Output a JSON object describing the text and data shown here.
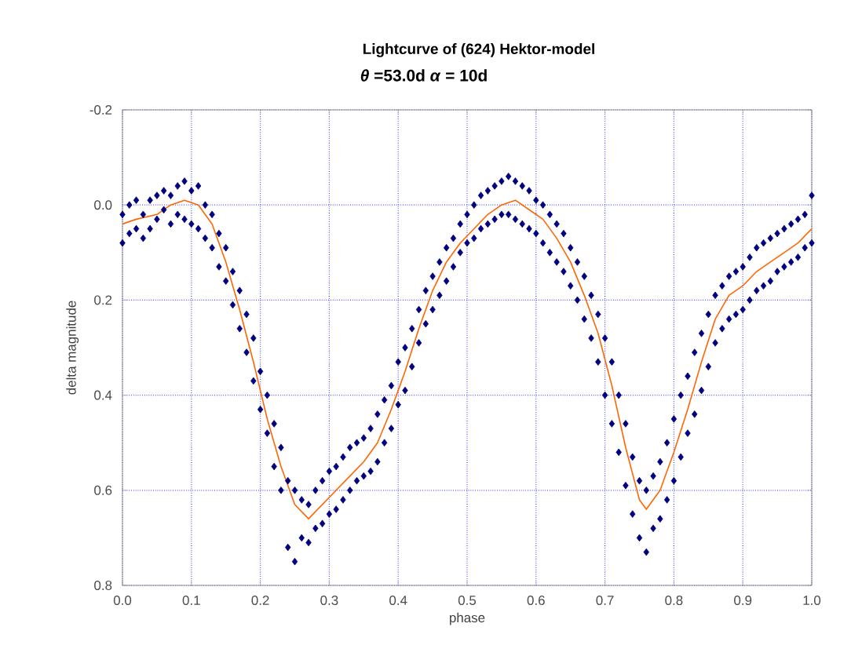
{
  "chart_data": {
    "type": "scatter",
    "title": "Lightcurve of (624) Hektor-model",
    "subtitle": "*θ* =53.0d    *α* = 10d",
    "xlabel": "phase",
    "ylabel": "delta magnitude",
    "xlim": [
      0,
      1
    ],
    "ylim": [
      0.8,
      -0.2
    ],
    "xticks": [
      {
        "value": 0,
        "label": "0.0"
      },
      0.1,
      0.2,
      0.3,
      0.4,
      0.5,
      0.6,
      0.7,
      0.8,
      0.9,
      {
        "value": 1,
        "label": "1.0"
      }
    ],
    "yticks": [
      -0.2,
      {
        "value": 0,
        "label": "0.0"
      },
      0.2,
      0.4,
      0.6,
      0.8
    ],
    "grid": true,
    "series": [
      {
        "marker": "diamond",
        "color": "#000080",
        "x": [
          0.0,
          0.0,
          0.01,
          0.01,
          0.02,
          0.02,
          0.03,
          0.03,
          0.04,
          0.04,
          0.05,
          0.05,
          0.06,
          0.06,
          0.07,
          0.07,
          0.08,
          0.08,
          0.09,
          0.09,
          0.1,
          0.1,
          0.11,
          0.11,
          0.12,
          0.12,
          0.13,
          0.13,
          0.14,
          0.14,
          0.15,
          0.15,
          0.16,
          0.16,
          0.17,
          0.17,
          0.18,
          0.18,
          0.19,
          0.19,
          0.2,
          0.2,
          0.21,
          0.21,
          0.22,
          0.22,
          0.23,
          0.23,
          0.24,
          0.24,
          0.25,
          0.25,
          0.26,
          0.26,
          0.27,
          0.27,
          0.28,
          0.28,
          0.29,
          0.29,
          0.3,
          0.3,
          0.31,
          0.31,
          0.32,
          0.32,
          0.33,
          0.33,
          0.34,
          0.34,
          0.35,
          0.35,
          0.36,
          0.36,
          0.37,
          0.37,
          0.38,
          0.38,
          0.39,
          0.39,
          0.4,
          0.4,
          0.41,
          0.41,
          0.42,
          0.42,
          0.43,
          0.43,
          0.44,
          0.44,
          0.45,
          0.45,
          0.46,
          0.46,
          0.47,
          0.47,
          0.48,
          0.48,
          0.49,
          0.49,
          0.5,
          0.5,
          0.51,
          0.51,
          0.52,
          0.52,
          0.53,
          0.53,
          0.54,
          0.54,
          0.55,
          0.55,
          0.56,
          0.56,
          0.57,
          0.57,
          0.58,
          0.58,
          0.59,
          0.59,
          0.6,
          0.6,
          0.61,
          0.61,
          0.62,
          0.62,
          0.63,
          0.63,
          0.64,
          0.64,
          0.65,
          0.65,
          0.66,
          0.66,
          0.67,
          0.67,
          0.68,
          0.68,
          0.69,
          0.69,
          0.7,
          0.7,
          0.71,
          0.71,
          0.72,
          0.72,
          0.73,
          0.73,
          0.74,
          0.74,
          0.75,
          0.75,
          0.76,
          0.76,
          0.77,
          0.77,
          0.78,
          0.78,
          0.79,
          0.79,
          0.8,
          0.8,
          0.81,
          0.81,
          0.82,
          0.82,
          0.83,
          0.83,
          0.84,
          0.84,
          0.85,
          0.85,
          0.86,
          0.86,
          0.87,
          0.87,
          0.88,
          0.88,
          0.89,
          0.89,
          0.9,
          0.9,
          0.91,
          0.91,
          0.92,
          0.92,
          0.93,
          0.93,
          0.94,
          0.94,
          0.95,
          0.95,
          0.96,
          0.96,
          0.97,
          0.97,
          0.98,
          0.98,
          0.99,
          0.99,
          1.0,
          1.0
        ],
        "values": [
          0.02,
          0.08,
          0.0,
          0.06,
          0.05,
          -0.01,
          0.02,
          0.07,
          -0.01,
          0.05,
          0.03,
          -0.02,
          0.01,
          -0.03,
          0.04,
          -0.02,
          -0.04,
          0.02,
          -0.05,
          0.03,
          -0.03,
          0.04,
          -0.04,
          0.05,
          0.0,
          0.07,
          0.02,
          0.09,
          0.06,
          0.13,
          0.09,
          0.16,
          0.14,
          0.21,
          0.18,
          0.26,
          0.23,
          0.31,
          0.28,
          0.37,
          0.35,
          0.43,
          0.4,
          0.48,
          0.46,
          0.55,
          0.51,
          0.6,
          0.58,
          0.72,
          0.6,
          0.75,
          0.62,
          0.7,
          0.63,
          0.71,
          0.6,
          0.68,
          0.58,
          0.67,
          0.56,
          0.65,
          0.55,
          0.64,
          0.53,
          0.62,
          0.51,
          0.6,
          0.5,
          0.58,
          0.49,
          0.57,
          0.47,
          0.56,
          0.44,
          0.54,
          0.41,
          0.5,
          0.38,
          0.47,
          0.33,
          0.42,
          0.3,
          0.39,
          0.26,
          0.34,
          0.22,
          0.29,
          0.18,
          0.25,
          0.15,
          0.22,
          0.12,
          0.19,
          0.09,
          0.16,
          0.07,
          0.13,
          0.04,
          0.1,
          0.02,
          0.08,
          0.0,
          0.07,
          -0.02,
          0.05,
          -0.03,
          0.04,
          -0.04,
          0.03,
          -0.05,
          0.02,
          -0.06,
          0.02,
          -0.05,
          0.03,
          -0.04,
          0.04,
          -0.03,
          0.05,
          -0.01,
          0.06,
          0.0,
          0.08,
          0.02,
          0.1,
          0.04,
          0.12,
          0.06,
          0.14,
          0.09,
          0.17,
          0.12,
          0.2,
          0.15,
          0.24,
          0.19,
          0.28,
          0.23,
          0.33,
          0.28,
          0.4,
          0.33,
          0.46,
          0.4,
          0.52,
          0.46,
          0.59,
          0.53,
          0.65,
          0.58,
          0.7,
          0.6,
          0.73,
          0.57,
          0.68,
          0.54,
          0.66,
          0.5,
          0.62,
          0.45,
          0.58,
          0.4,
          0.53,
          0.36,
          0.48,
          0.31,
          0.44,
          0.27,
          0.39,
          0.23,
          0.34,
          0.19,
          0.29,
          0.17,
          0.26,
          0.15,
          0.24,
          0.14,
          0.23,
          0.13,
          0.22,
          0.11,
          0.2,
          0.09,
          0.18,
          0.08,
          0.17,
          0.07,
          0.16,
          0.06,
          0.14,
          0.05,
          0.13,
          0.04,
          0.12,
          0.03,
          0.11,
          0.02,
          0.09,
          -0.02,
          0.08
        ]
      },
      {
        "type": "line",
        "color": "#ff6600",
        "x": [
          0.0,
          0.02,
          0.05,
          0.07,
          0.09,
          0.11,
          0.13,
          0.15,
          0.17,
          0.19,
          0.21,
          0.23,
          0.25,
          0.27,
          0.29,
          0.31,
          0.33,
          0.35,
          0.37,
          0.39,
          0.41,
          0.43,
          0.45,
          0.47,
          0.49,
          0.51,
          0.53,
          0.55,
          0.57,
          0.59,
          0.61,
          0.63,
          0.65,
          0.67,
          0.69,
          0.71,
          0.73,
          0.75,
          0.76,
          0.78,
          0.8,
          0.82,
          0.84,
          0.86,
          0.88,
          0.9,
          0.92,
          0.94,
          0.96,
          0.98,
          1.0
        ],
        "values": [
          0.04,
          0.03,
          0.02,
          0.0,
          -0.01,
          0.0,
          0.04,
          0.12,
          0.22,
          0.33,
          0.45,
          0.55,
          0.63,
          0.66,
          0.63,
          0.6,
          0.57,
          0.54,
          0.5,
          0.43,
          0.35,
          0.26,
          0.18,
          0.12,
          0.08,
          0.05,
          0.02,
          0.0,
          -0.01,
          0.01,
          0.03,
          0.07,
          0.12,
          0.19,
          0.27,
          0.38,
          0.51,
          0.62,
          0.64,
          0.6,
          0.52,
          0.43,
          0.33,
          0.24,
          0.19,
          0.17,
          0.14,
          0.12,
          0.1,
          0.08,
          0.05
        ]
      }
    ]
  }
}
